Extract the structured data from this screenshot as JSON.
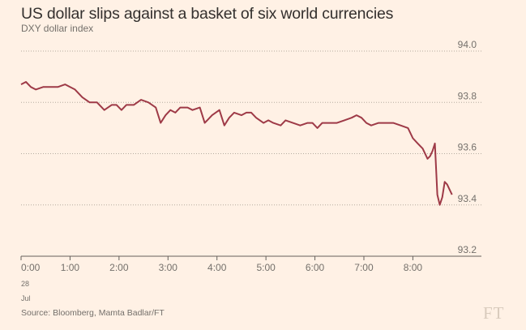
{
  "title": "US dollar slips against a basket of six world currencies",
  "subtitle": "DXY dollar index",
  "source": "Source: Bloomberg, Mamta Badlar/FT",
  "logo": "FT",
  "colors": {
    "background": "#fff1e5",
    "line": "#9e3a47",
    "grid": "#b5ab9f",
    "text": "#33302e",
    "muted": "#74706b"
  },
  "chart_data": {
    "type": "line",
    "title": "US dollar slips against a basket of six world currencies",
    "subtitle": "DXY dollar index",
    "xlabel": "",
    "ylabel": "",
    "x_ticks": [
      "0:00",
      "1:00",
      "2:00",
      "3:00",
      "4:00",
      "5:00",
      "6:00",
      "7:00",
      "8:00"
    ],
    "x_tick_values": [
      0,
      1,
      2,
      3,
      4,
      5,
      6,
      7,
      8
    ],
    "date_label": [
      "28",
      "Jul"
    ],
    "y_ticks": [
      93.2,
      93.4,
      93.6,
      93.8,
      94.0
    ],
    "xlim": [
      0,
      9.4
    ],
    "ylim": [
      93.2,
      94.0
    ],
    "grid": "horizontal dotted",
    "axis_side": "right",
    "series": [
      {
        "color": "#9e3a47",
        "x": [
          0.0,
          0.1,
          0.2,
          0.3,
          0.45,
          0.6,
          0.75,
          0.9,
          1.0,
          1.1,
          1.25,
          1.4,
          1.55,
          1.7,
          1.85,
          1.95,
          2.05,
          2.15,
          2.3,
          2.45,
          2.6,
          2.75,
          2.85,
          2.95,
          3.05,
          3.15,
          3.25,
          3.4,
          3.5,
          3.65,
          3.75,
          3.9,
          4.05,
          4.15,
          4.25,
          4.35,
          4.5,
          4.6,
          4.7,
          4.8,
          4.95,
          5.05,
          5.15,
          5.3,
          5.4,
          5.55,
          5.7,
          5.85,
          5.95,
          6.05,
          6.15,
          6.3,
          6.45,
          6.6,
          6.75,
          6.85,
          6.95,
          7.05,
          7.15,
          7.3,
          7.45,
          7.6,
          7.75,
          7.9,
          8.0,
          8.1,
          8.2,
          8.3,
          8.35,
          8.4,
          8.45,
          8.5,
          8.55,
          8.6,
          8.65,
          8.7,
          8.75,
          8.8
        ],
        "y": [
          93.87,
          93.88,
          93.86,
          93.85,
          93.86,
          93.86,
          93.86,
          93.87,
          93.86,
          93.85,
          93.82,
          93.8,
          93.8,
          93.77,
          93.79,
          93.79,
          93.77,
          93.79,
          93.79,
          93.81,
          93.8,
          93.78,
          93.72,
          93.75,
          93.77,
          93.76,
          93.78,
          93.78,
          93.77,
          93.78,
          93.72,
          93.75,
          93.77,
          93.71,
          93.74,
          93.76,
          93.75,
          93.76,
          93.76,
          93.74,
          93.72,
          93.73,
          93.72,
          93.71,
          93.73,
          93.72,
          93.71,
          93.72,
          93.72,
          93.7,
          93.72,
          93.72,
          93.72,
          93.73,
          93.74,
          93.75,
          93.74,
          93.72,
          93.71,
          93.72,
          93.72,
          93.72,
          93.71,
          93.7,
          93.66,
          93.64,
          93.62,
          93.58,
          93.59,
          93.61,
          93.64,
          93.44,
          93.4,
          93.43,
          93.49,
          93.48,
          93.46,
          93.44
        ]
      }
    ]
  }
}
